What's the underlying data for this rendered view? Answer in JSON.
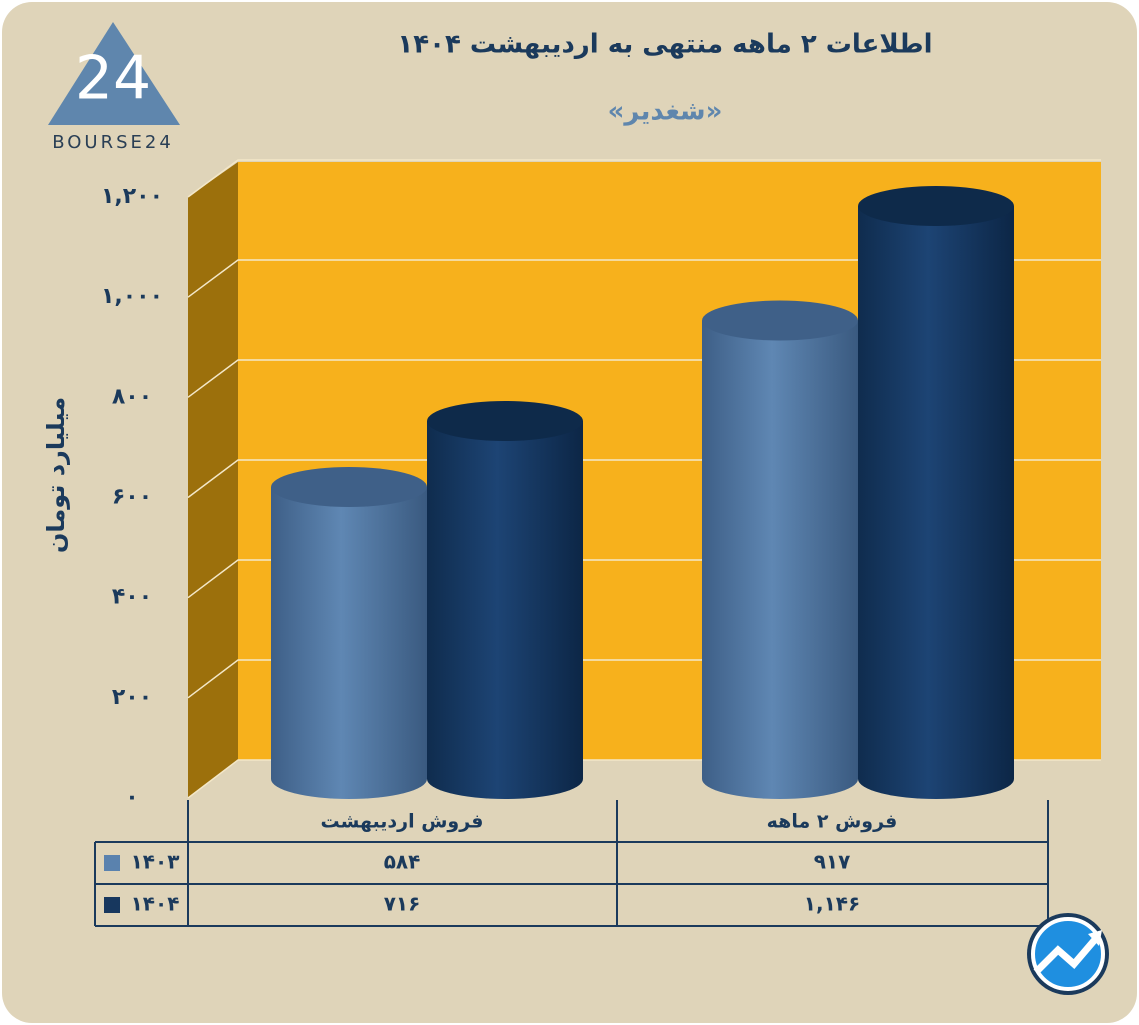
{
  "logo": {
    "mark": "24",
    "text": "BOURSE24"
  },
  "chart_data": {
    "type": "bar",
    "title": "اطلاعات ۲ ماهه منتهی به اردیبهشت ۱۴۰۴",
    "subtitle": "«شغدیر»",
    "y_label": "میلیارد تومان",
    "categories": [
      "فروش اردیبهشت",
      "فروش ۲ ماهه"
    ],
    "series": [
      {
        "name": "۱۴۰۳",
        "color": "#5a82ae",
        "values": [
          584,
          917
        ],
        "value_labels": [
          "۵۸۴",
          "۹۱۷"
        ]
      },
      {
        "name": "۱۴۰۴",
        "color": "#17375e",
        "values": [
          716,
          1146
        ],
        "value_labels": [
          "۷۱۶",
          "۱,۱۴۶"
        ]
      }
    ],
    "ylim": [
      0,
      1200
    ],
    "yticks": [
      {
        "value": 0,
        "label": "۰"
      },
      {
        "value": 200,
        "label": "۲۰۰"
      },
      {
        "value": 400,
        "label": "۴۰۰"
      },
      {
        "value": 600,
        "label": "۶۰۰"
      },
      {
        "value": 800,
        "label": "۸۰۰"
      },
      {
        "value": 1000,
        "label": "۱,۰۰۰"
      },
      {
        "value": 1200,
        "label": "۱,۲۰۰"
      }
    ],
    "grid": true,
    "wall_color": "#f7b11c"
  }
}
